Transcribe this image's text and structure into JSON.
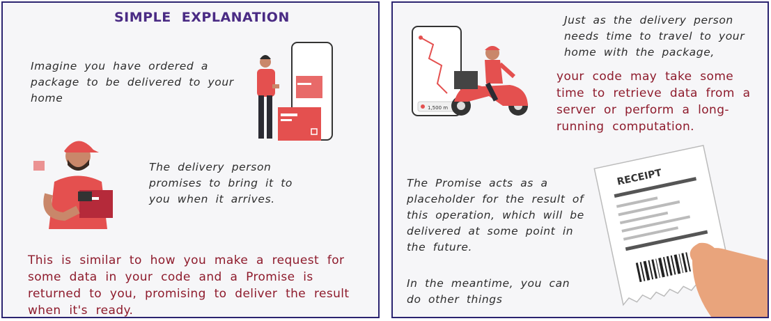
{
  "left_panel": {
    "title": "SIMPLE EXPLANATION",
    "paragraph1": "Imagine you have ordered a package to be delivered to your home",
    "paragraph2": "The delivery person promises to bring it to you when it arrives.",
    "paragraph3": "This is similar to how you make a request for some data in your code and a Promise is returned to you, promising to deliver the result when it's ready."
  },
  "right_panel": {
    "paragraph1": "Just as the delivery person needs time to travel to your home with the package,",
    "paragraph2": "your code may take some time to retrieve data from a server or perform a long-running computation.",
    "paragraph3": "The Promise acts as a placeholder for the result of this operation, which will be delivered at some point in the future.",
    "paragraph4": "In the meantime, you can do other things",
    "receipt_label": "RECEIPT",
    "phone_text": "1,500 m"
  },
  "colors": {
    "border": "#2b2470",
    "title": "#4a2b84",
    "highlight": "#8e1b2c",
    "accent_red": "#e4504f"
  }
}
